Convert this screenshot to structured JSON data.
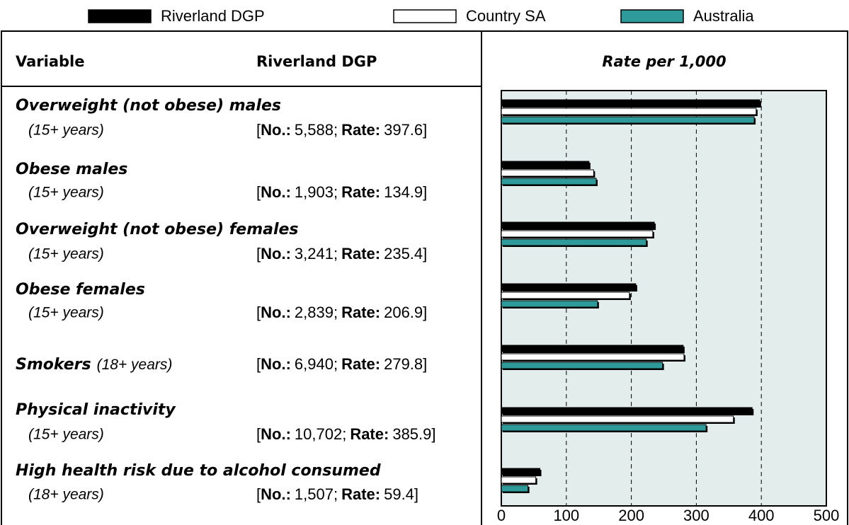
{
  "chart_data": {
    "type": "bar",
    "orientation": "horizontal",
    "title": "Rate per 1,000",
    "column_headers": [
      "Variable",
      "Riverland DGP"
    ],
    "categories": [
      "Overweight (not obese) males",
      "Obese males",
      "Overweight (not obese) females",
      "Obese females",
      "Smokers",
      "Physical inactivity",
      "High health risk due to alcohol consumed"
    ],
    "notes": [
      "(15+ years)",
      "(15+ years)",
      "(15+ years)",
      "(15+ years)",
      "(18+ years)",
      "(15+ years)",
      "(18+ years)"
    ],
    "count_label": "No.:",
    "rate_label": "Rate:",
    "open": "[",
    "separator": ";",
    "close": "]",
    "counts": [
      "5,588",
      "1,903",
      "3,241",
      "2,839",
      "6,940",
      "10,702",
      "1,507"
    ],
    "series": [
      {
        "name": "Riverland DGP",
        "color": "#000000",
        "values": [
          397.6,
          134.9,
          235.4,
          206.9,
          279.8,
          385.9,
          59.4
        ]
      },
      {
        "name": "Country SA",
        "color": "#ffffff",
        "values": [
          392,
          142,
          233,
          197,
          281,
          357,
          53
        ]
      },
      {
        "name": "Australia",
        "color": "#2e9a9a",
        "values": [
          389,
          146,
          223,
          148,
          248,
          315,
          41
        ]
      }
    ],
    "xlim": [
      0,
      500
    ],
    "xticks": [
      0,
      100,
      200,
      300,
      400,
      500
    ],
    "grid": true,
    "legend": "top"
  }
}
